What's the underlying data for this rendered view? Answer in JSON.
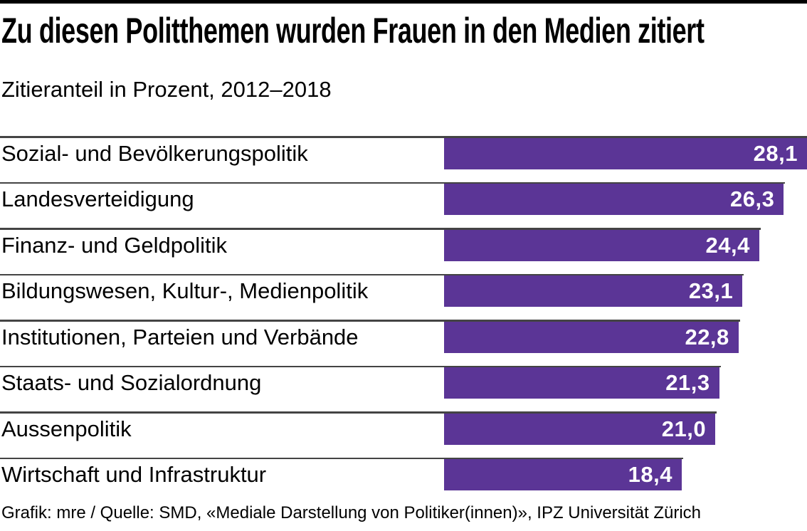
{
  "page": {
    "title": "Zu diesen Politthemen wurden Frauen in den Medien zitiert",
    "subtitle": "Zitieranteil in Prozent, 2012–2018",
    "footer": "Grafik: mre / Quelle: SMD, «Mediale Darstellung von Politiker(innen)», IPZ Universität Zürich"
  },
  "colors": {
    "bar": "#5b3596",
    "rule": "#444444",
    "top_rule": "#000000",
    "value_text": "#ffffff",
    "background": "#ffffff",
    "text": "#000000"
  },
  "chart_data": {
    "type": "bar",
    "orientation": "horizontal",
    "title": "Zu diesen Politthemen wurden Frauen in den Medien zitiert",
    "subtitle": "Zitieranteil in Prozent, 2012–2018",
    "ylabel": "",
    "xlabel": "Zitieranteil in Prozent",
    "xlim": [
      0,
      28.1
    ],
    "grid": false,
    "legend": false,
    "categories": [
      "Sozial- und Bevölkerungspolitik",
      "Landesverteidigung",
      "Finanz- und Geldpolitik",
      "Bildungswesen, Kultur-, Medienpolitik",
      "Institutionen, Parteien und Verbände",
      "Staats- und Sozialordnung",
      "Aussenpolitik",
      "Wirtschaft und Infrastruktur"
    ],
    "values": [
      28.1,
      26.3,
      24.4,
      23.1,
      22.8,
      21.3,
      21.0,
      18.4
    ],
    "value_labels": [
      "28,1",
      "26,3",
      "24,4",
      "23,1",
      "22,8",
      "21,3",
      "21,0",
      "18,4"
    ]
  }
}
